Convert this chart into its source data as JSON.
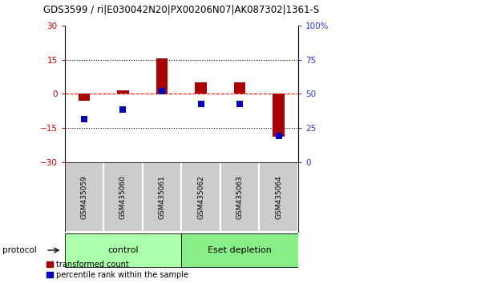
{
  "title": "GDS3599 / ri|E030042N20|PX00206N07|AK087302|1361-S",
  "categories": [
    "GSM435059",
    "GSM435060",
    "GSM435061",
    "GSM435062",
    "GSM435063",
    "GSM435064"
  ],
  "red_values": [
    -3.0,
    1.5,
    15.5,
    5.0,
    5.0,
    -19.0
  ],
  "blue_left_values": [
    -11.0,
    -7.0,
    1.0,
    -4.5,
    -4.5,
    -18.5
  ],
  "left_ylim": [
    -30,
    30
  ],
  "right_ylim": [
    0,
    100
  ],
  "left_yticks": [
    -30,
    -15,
    0,
    15,
    30
  ],
  "right_yticks": [
    0,
    25,
    50,
    75,
    100
  ],
  "right_yticklabels": [
    "0",
    "25",
    "50",
    "75",
    "100%"
  ],
  "hlines_y": [
    15,
    0,
    -15
  ],
  "hline_styles": [
    "dotted",
    "dashed",
    "dotted"
  ],
  "hline_colors": [
    "black",
    "red",
    "black"
  ],
  "left_ycolor": "#cc0000",
  "right_ycolor": "#3333cc",
  "bar_color": "#aa0000",
  "dot_color": "#0000bb",
  "control_label": "control",
  "eset_label": "Eset depletion",
  "protocol_label": "protocol",
  "legend_red": "transformed count",
  "legend_blue": "percentile rank within the sample",
  "control_color": "#aaffaa",
  "eset_color": "#88ee88",
  "label_bg_color": "#cccccc",
  "bar_width": 0.3,
  "dot_size": 40,
  "n_control": 3,
  "n_eset": 3
}
